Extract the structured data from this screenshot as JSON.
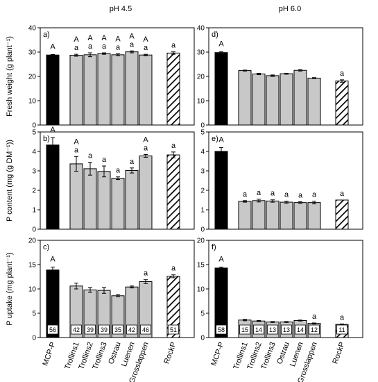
{
  "column_titles": [
    "pH 4.5",
    "pH 6.0"
  ],
  "row_ylabels": [
    "Fresh weight (g plant⁻¹)",
    "P content (mg (g DM⁻¹))",
    "P uptake (mg plant⁻¹)"
  ],
  "categories": [
    "MCP-P",
    "Trollins1",
    "Trollins2",
    "Trollins3",
    "Ostrau",
    "Luenen",
    "Grosslappen",
    "RockP"
  ],
  "colors": {
    "mcp": "#000000",
    "ash": "#c8c8c8",
    "rock_hatch": "#000000"
  },
  "chart_data": [
    {
      "type": "bar",
      "panel": "a)",
      "title": "pH 4.5",
      "ylabel": "Fresh weight (g plant⁻¹)",
      "ylim": [
        0,
        40
      ],
      "yticks": [
        0,
        10,
        20,
        30,
        40
      ],
      "categories": [
        "MCP-P",
        "Trollins1",
        "Trollins2",
        "Trollins3",
        "Ostrau",
        "Luenen",
        "Grosslappen",
        "RockP"
      ],
      "values": [
        28.8,
        28.7,
        28.9,
        29.4,
        28.9,
        30.1,
        28.8,
        29.6
      ],
      "errors": [
        0.2,
        0.4,
        0.8,
        0.3,
        0.4,
        0.4,
        0.3,
        0.5
      ],
      "letters_upper": [
        "A",
        "A",
        "A",
        "A",
        "A",
        "A",
        "A",
        ""
      ],
      "letters_lower": [
        "",
        "a",
        "a",
        "a",
        "a",
        "a",
        "a",
        "a"
      ],
      "bar_labels": []
    },
    {
      "type": "bar",
      "panel": "d)",
      "title": "pH 6.0",
      "ylabel": "",
      "ylim": [
        0,
        40
      ],
      "yticks": [
        0,
        10,
        20,
        30,
        40
      ],
      "categories": [
        "MCP-P",
        "Trollins1",
        "Trollins2",
        "Trollins3",
        "Ostrau",
        "Luenen",
        "Grosslappen",
        "RockP"
      ],
      "values": [
        29.8,
        22.4,
        21.0,
        20.3,
        21.1,
        22.5,
        19.3,
        18.1
      ],
      "errors": [
        0.3,
        0.2,
        0.3,
        0.3,
        0.2,
        0.3,
        0.2,
        0.5
      ],
      "letters_upper": [
        "A",
        "",
        "",
        "",
        "",
        "",
        "",
        ""
      ],
      "letters_lower": [
        "",
        "",
        "",
        "",
        "",
        "",
        "",
        "a"
      ],
      "bar_labels": []
    },
    {
      "type": "bar",
      "panel": "b)",
      "title": "",
      "ylabel": "P content (mg (g DM⁻¹))",
      "ylim": [
        0,
        5
      ],
      "yticks": [
        0,
        1,
        2,
        3,
        4,
        5
      ],
      "categories": [
        "MCP-P",
        "Trollins1",
        "Trollins2",
        "Trollins3",
        "Ostrau",
        "Luenen",
        "Grosslappen",
        "RockP"
      ],
      "values": [
        4.33,
        3.36,
        3.11,
        2.97,
        2.62,
        3.02,
        3.77,
        3.82
      ],
      "errors": [
        0.38,
        0.38,
        0.33,
        0.28,
        0.07,
        0.13,
        0.07,
        0.15
      ],
      "letters_upper": [
        "A",
        "A",
        "",
        "",
        "",
        "",
        "A",
        ""
      ],
      "letters_lower": [
        "",
        "a",
        "a",
        "a",
        "a",
        "a",
        "a",
        "a"
      ],
      "bar_labels": []
    },
    {
      "type": "bar",
      "panel": "e)",
      "title": "",
      "ylabel": "",
      "ylim": [
        0,
        5
      ],
      "yticks": [
        0,
        1,
        2,
        3,
        4,
        5
      ],
      "categories": [
        "MCP-P",
        "Trollins1",
        "Trollins2",
        "Trollins3",
        "Ostrau",
        "Luenen",
        "Grosslappen",
        "RockP"
      ],
      "values": [
        4.0,
        1.43,
        1.47,
        1.45,
        1.39,
        1.37,
        1.37,
        1.5
      ],
      "errors": [
        0.2,
        0.04,
        0.07,
        0.06,
        0.05,
        0.04,
        0.07,
        0.0
      ],
      "letters_upper": [
        "A",
        "",
        "",
        "",
        "",
        "",
        "",
        ""
      ],
      "letters_lower": [
        "",
        "a",
        "a",
        "a",
        "a",
        "a",
        "a",
        "a"
      ],
      "bar_labels": []
    },
    {
      "type": "bar",
      "panel": "c)",
      "title": "",
      "ylabel": "P uptake (mg plant⁻¹)",
      "ylim": [
        0,
        20
      ],
      "yticks": [
        0,
        5,
        10,
        15,
        20
      ],
      "categories": [
        "MCP-P",
        "Trollins1",
        "Trollins2",
        "Trollins3",
        "Ostrau",
        "Luenen",
        "Grosslappen",
        "RockP"
      ],
      "values": [
        13.9,
        10.6,
        9.8,
        9.7,
        8.6,
        10.4,
        11.5,
        12.6
      ],
      "errors": [
        0.6,
        0.6,
        0.5,
        0.6,
        0.2,
        0.2,
        0.4,
        0.3
      ],
      "letters_upper": [
        "A",
        "",
        "",
        "",
        "",
        "",
        "",
        ""
      ],
      "letters_lower": [
        "",
        "",
        "",
        "",
        "",
        "",
        "a",
        "a"
      ],
      "bar_labels": [
        "56",
        "42",
        "39",
        "39",
        "35",
        "42",
        "46",
        "51"
      ]
    },
    {
      "type": "bar",
      "panel": "f)",
      "title": "",
      "ylabel": "",
      "ylim": [
        0,
        20
      ],
      "yticks": [
        0,
        5,
        10,
        15,
        20
      ],
      "categories": [
        "MCP-P",
        "Trollins1",
        "Trollins2",
        "Trollins3",
        "Ostrau",
        "Luenen",
        "Grosslappen",
        "RockP"
      ],
      "values": [
        14.3,
        3.6,
        3.4,
        3.2,
        3.2,
        3.5,
        2.9,
        2.7
      ],
      "errors": [
        0.2,
        0.15,
        0.1,
        0.1,
        0.1,
        0.1,
        0.1,
        0.1
      ],
      "letters_upper": [
        "A",
        "",
        "",
        "",
        "",
        "",
        "",
        ""
      ],
      "letters_lower": [
        "",
        "",
        "",
        "",
        "",
        "",
        "a",
        "a"
      ],
      "bar_labels": [
        "58",
        "15",
        "14",
        "13",
        "13",
        "14",
        "12",
        "11"
      ]
    }
  ]
}
